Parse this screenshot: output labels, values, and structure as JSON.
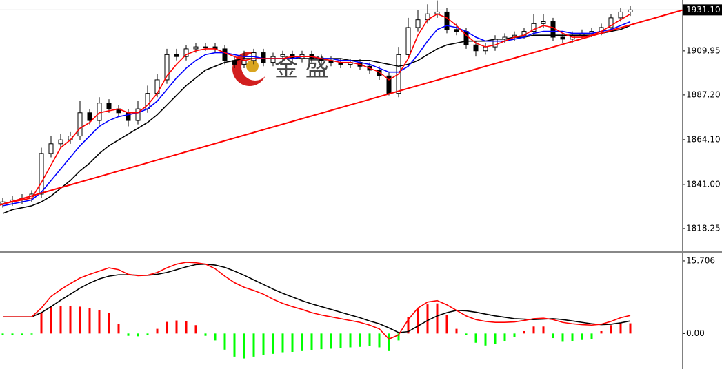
{
  "chart_data": [
    {
      "type": "candlestick",
      "open": [
        1831,
        1832,
        1833,
        1834,
        1836,
        1857,
        1862,
        1864,
        1866,
        1878,
        1874,
        1883,
        1880,
        1878,
        1874,
        1880,
        1888,
        1895,
        1908,
        1907,
        1911,
        1912,
        1912,
        1911,
        1905,
        1903,
        1905,
        1909,
        1904,
        1907,
        1908,
        1906,
        1908,
        1906,
        1905,
        1904,
        1903,
        1904,
        1902,
        1900,
        1897,
        1888,
        1908,
        1922,
        1926,
        1929,
        1930,
        1921,
        1920,
        1913,
        1910,
        1912,
        1916,
        1917,
        1918,
        1920,
        1924,
        1925,
        1917,
        1916,
        1918,
        1919,
        1920,
        1922,
        1927,
        1930
      ],
      "high": [
        1834,
        1835,
        1836,
        1838,
        1860,
        1866,
        1867,
        1868,
        1884,
        1880,
        1886,
        1885,
        1882,
        1880,
        1884,
        1892,
        1898,
        1911,
        1911,
        1913,
        1914,
        1914,
        1914,
        1913,
        1907,
        1910,
        1911,
        1911,
        1909,
        1910,
        1910,
        1910,
        1910,
        1908,
        1907,
        1906,
        1906,
        1906,
        1904,
        1902,
        1899,
        1912,
        1927,
        1931,
        1934,
        1936,
        1932,
        1924,
        1922,
        1915,
        1914,
        1918,
        1919,
        1920,
        1922,
        1929,
        1929,
        1927,
        1919,
        1920,
        1921,
        1922,
        1924,
        1929,
        1932,
        1933
      ],
      "low": [
        1829,
        1830,
        1831,
        1832,
        1834,
        1855,
        1860,
        1862,
        1864,
        1872,
        1872,
        1878,
        1876,
        1871,
        1872,
        1878,
        1886,
        1893,
        1905,
        1905,
        1909,
        1910,
        1909,
        1903,
        1901,
        1901,
        1903,
        1902,
        1902,
        1905,
        1904,
        1904,
        1904,
        1903,
        1902,
        1901,
        1901,
        1900,
        1898,
        1895,
        1887,
        1886,
        1906,
        1920,
        1924,
        1927,
        1919,
        1918,
        1911,
        1907,
        1908,
        1910,
        1914,
        1915,
        1916,
        1918,
        1922,
        1915,
        1914,
        1914,
        1916,
        1917,
        1918,
        1920,
        1925,
        1928
      ],
      "close": [
        1832,
        1833,
        1834,
        1836,
        1857,
        1862,
        1864,
        1866,
        1878,
        1874,
        1883,
        1880,
        1878,
        1874,
        1880,
        1888,
        1895,
        1908,
        1907,
        1911,
        1912,
        1912,
        1911,
        1905,
        1903,
        1905,
        1909,
        1904,
        1907,
        1908,
        1906,
        1908,
        1906,
        1905,
        1904,
        1903,
        1904,
        1902,
        1900,
        1897,
        1888,
        1908,
        1922,
        1926,
        1929,
        1930,
        1921,
        1920,
        1913,
        1910,
        1912,
        1916,
        1917,
        1918,
        1920,
        1924,
        1925,
        1917,
        1916,
        1918,
        1919,
        1920,
        1922,
        1927,
        1930,
        1931.1
      ],
      "up_color": "#ffffff",
      "down_color": "#000000",
      "lines": [
        {
          "color": "#000000",
          "values": [
            1826,
            1828,
            1829,
            1830,
            1832,
            1835,
            1839,
            1843,
            1848,
            1852,
            1857,
            1861,
            1864,
            1867,
            1870,
            1873,
            1877,
            1882,
            1887,
            1892,
            1896,
            1900,
            1902,
            1904,
            1905,
            1906,
            1906,
            1906,
            1906,
            1906,
            1906,
            1906,
            1906,
            1906,
            1906,
            1906,
            1905,
            1905,
            1905,
            1904,
            1903,
            1902,
            1903,
            1905,
            1908,
            1911,
            1913,
            1914,
            1915,
            1915,
            1915,
            1916,
            1916,
            1917,
            1917,
            1918,
            1918,
            1918,
            1918,
            1918,
            1918,
            1918,
            1919,
            1920,
            1921,
            1923
          ]
        },
        {
          "color": "#0000ff",
          "values": [
            1830,
            1831,
            1832,
            1833,
            1837,
            1843,
            1849,
            1855,
            1861,
            1866,
            1871,
            1874,
            1876,
            1877,
            1878,
            1880,
            1884,
            1890,
            1896,
            1901,
            1905,
            1908,
            1909,
            1909,
            1908,
            1907,
            1907,
            1906,
            1906,
            1906,
            1906,
            1907,
            1907,
            1906,
            1906,
            1905,
            1905,
            1904,
            1903,
            1901,
            1899,
            1899,
            1902,
            1908,
            1915,
            1921,
            1923,
            1922,
            1920,
            1917,
            1915,
            1915,
            1915,
            1916,
            1917,
            1919,
            1920,
            1920,
            1920,
            1919,
            1919,
            1919,
            1920,
            1921,
            1923,
            1925
          ]
        },
        {
          "color": "#ff0000",
          "values": [
            1831,
            1832,
            1833,
            1834,
            1842,
            1851,
            1860,
            1864,
            1870,
            1873,
            1878,
            1879,
            1880,
            1878,
            1878,
            1882,
            1888,
            1897,
            1903,
            1908,
            1910,
            1911,
            1911,
            1909,
            1907,
            1905,
            1906,
            1906,
            1906,
            1906,
            1907,
            1907,
            1907,
            1906,
            1905,
            1904,
            1904,
            1903,
            1901,
            1899,
            1895,
            1898,
            1906,
            1918,
            1926,
            1929,
            1927,
            1923,
            1918,
            1914,
            1912,
            1913,
            1915,
            1917,
            1918,
            1921,
            1923,
            1922,
            1919,
            1917,
            1917,
            1918,
            1920,
            1923,
            1926,
            1929
          ]
        }
      ],
      "trendline": {
        "color": "#ff0000",
        "x": [
          -0.3,
          70.4
        ],
        "values": [
          1830.4,
          1931
        ]
      },
      "last_price": {
        "value": 1931.1,
        "label": "1931.10"
      },
      "watermark": "金 盛",
      "ylim": [
        1806.5,
        1936.2
      ],
      "yticks": [
        1818.25,
        {
          "value": 1841,
          "label": "1841.00"
        },
        {
          "value": 1864.1,
          "label": "1864.10"
        },
        {
          "value": 1887.2,
          "label": "1887.20"
        },
        1909.95
      ]
    },
    {
      "type": "macd",
      "histogram": [
        -0.3,
        -0.3,
        -0.3,
        -0.2,
        4.5,
        5.8,
        6.0,
        6.0,
        5.8,
        5.5,
        5.0,
        4.5,
        2.0,
        -0.5,
        -0.6,
        -0.4,
        1.0,
        2.5,
        2.8,
        2.6,
        1.8,
        -0.5,
        -1.5,
        -3.5,
        -5.0,
        -5.4,
        -5.0,
        -4.6,
        -4.4,
        -4.2,
        -4.0,
        -3.8,
        -3.6,
        -3.4,
        -3.3,
        -3.2,
        -3.0,
        -2.9,
        -2.7,
        -3.0,
        -3.8,
        -1.5,
        3.5,
        5.5,
        6.3,
        6.5,
        4.0,
        1.0,
        -0.3,
        -2.0,
        -2.6,
        -2.3,
        -1.6,
        -0.8,
        0.5,
        1.5,
        1.5,
        -1.0,
        -1.8,
        -1.6,
        -1.4,
        -1.2,
        0.5,
        1.8,
        2.2,
        2.2
      ],
      "positive_color": "#ff0000",
      "negative_color": "#00ff00",
      "series": [
        {
          "color": "#000000",
          "values": [
            3.6,
            3.6,
            3.6,
            3.6,
            4.5,
            5.8,
            7.2,
            8.5,
            9.8,
            10.9,
            11.8,
            12.4,
            12.7,
            12.7,
            12.6,
            12.6,
            12.8,
            13.2,
            13.8,
            14.4,
            14.9,
            15.0,
            14.8,
            14.3,
            13.5,
            12.6,
            11.6,
            10.6,
            9.6,
            8.7,
            7.9,
            7.1,
            6.4,
            5.8,
            5.2,
            4.6,
            4.0,
            3.4,
            2.7,
            2.1,
            1.2,
            0.2,
            0.4,
            1.6,
            2.8,
            3.8,
            4.5,
            5.0,
            4.9,
            4.6,
            4.2,
            3.8,
            3.5,
            3.2,
            3.1,
            3.0,
            3.1,
            3.2,
            3.0,
            2.7,
            2.4,
            2.1,
            1.9,
            2.0,
            2.3,
            2.7
          ]
        },
        {
          "color": "#ff0000",
          "values": [
            3.6,
            3.6,
            3.6,
            3.6,
            5.5,
            8.0,
            9.5,
            10.8,
            12.0,
            12.8,
            13.5,
            14.2,
            13.8,
            12.8,
            12.5,
            12.6,
            13.2,
            14.2,
            15.0,
            15.4,
            15.3,
            15.0,
            14.0,
            12.4,
            11.0,
            10.0,
            9.3,
            8.5,
            7.4,
            6.5,
            5.8,
            5.2,
            4.5,
            4.0,
            3.6,
            3.2,
            2.8,
            2.4,
            1.8,
            1.0,
            -1.2,
            -0.3,
            3.0,
            5.5,
            6.8,
            7.1,
            6.2,
            5.0,
            3.8,
            3.0,
            2.6,
            2.4,
            2.4,
            2.5,
            2.8,
            3.2,
            3.3,
            3.0,
            2.4,
            2.1,
            1.9,
            1.8,
            2.0,
            2.6,
            3.4,
            3.9
          ]
        }
      ],
      "ylim": [
        -7.7,
        17.19
      ],
      "yticks": [
        15.706,
        {
          "value": 0,
          "label": "0.00"
        }
      ]
    }
  ]
}
